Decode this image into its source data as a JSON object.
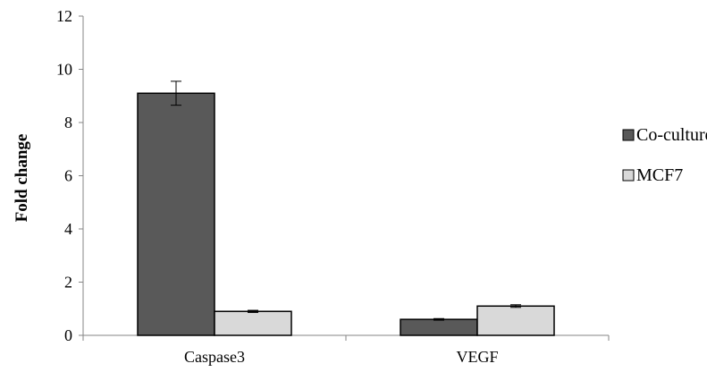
{
  "chart_data": {
    "type": "bar",
    "categories": [
      "Caspase3",
      "VEGF"
    ],
    "ylabel": "Fold change",
    "ylim": [
      0,
      12
    ],
    "yticks": [
      "0",
      "2",
      "4",
      "6",
      "8",
      "10",
      "12"
    ],
    "legend_position": "right",
    "series": [
      {
        "name": "Co-culture",
        "values": [
          9.1,
          0.6
        ],
        "errors": [
          0.45,
          0.03
        ],
        "color": "#595959"
      },
      {
        "name": "MCF7",
        "values": [
          0.9,
          1.1
        ],
        "errors": [
          0.04,
          0.05
        ],
        "color": "#d9d9d9"
      }
    ]
  }
}
